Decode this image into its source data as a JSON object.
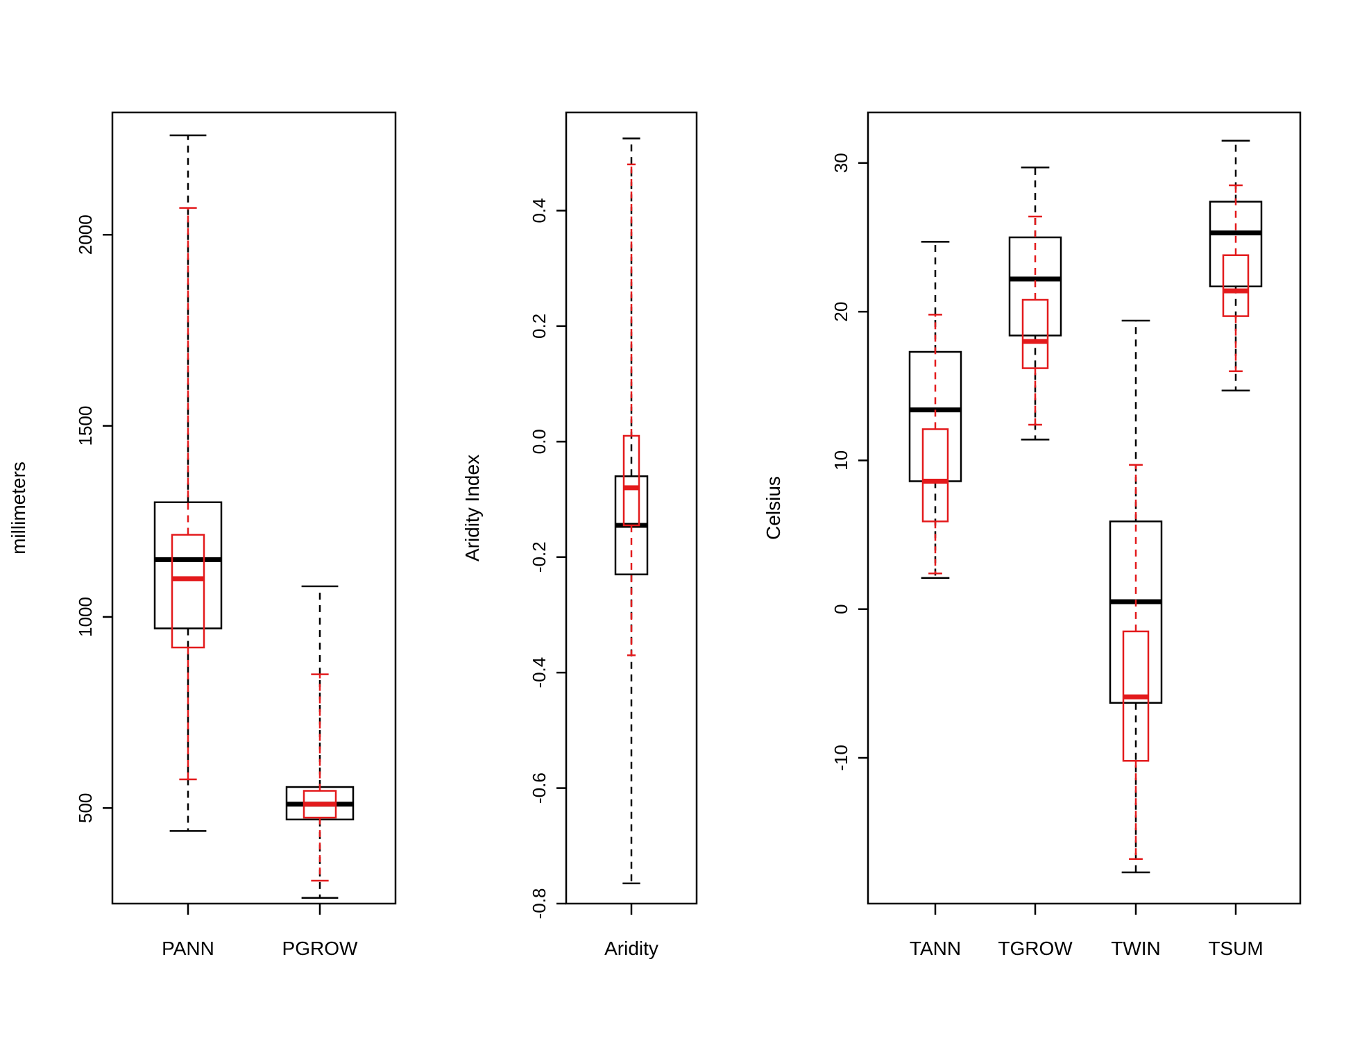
{
  "colors": {
    "black_series": "#000000",
    "red_series": "#e31a1c",
    "frame": "#000000"
  },
  "chart_data": [
    {
      "type": "boxplot",
      "ylabel": "millimeters",
      "ylim": [
        250,
        2320
      ],
      "yticks": [
        500,
        1000,
        1500,
        2000
      ],
      "yticks_text": [
        "500",
        "1000",
        "1500",
        "2000"
      ],
      "categories": [
        "PANN",
        "PGROW"
      ],
      "series": [
        {
          "name": "black",
          "boxes": [
            {
              "min": 440,
              "q1": 970,
              "median": 1150,
              "q3": 1300,
              "max": 2260
            },
            {
              "min": 265,
              "q1": 470,
              "median": 510,
              "q3": 555,
              "max": 1080
            }
          ]
        },
        {
          "name": "red",
          "boxes": [
            {
              "min": 575,
              "q1": 920,
              "median": 1100,
              "q3": 1215,
              "max": 2070
            },
            {
              "min": 310,
              "q1": 475,
              "median": 510,
              "q3": 545,
              "max": 850
            }
          ]
        }
      ]
    },
    {
      "type": "boxplot",
      "ylabel": "Aridity Index",
      "ylim": [
        -0.8,
        0.57
      ],
      "yticks": [
        -0.8,
        -0.6,
        -0.4,
        -0.2,
        0.0,
        0.2,
        0.4
      ],
      "yticks_text": [
        "-0.8",
        "-0.6",
        "-0.4",
        "-0.2",
        "0.0",
        "0.2",
        "0.4"
      ],
      "categories": [
        "Aridity"
      ],
      "series": [
        {
          "name": "black",
          "boxes": [
            {
              "min": -0.765,
              "q1": -0.23,
              "median": -0.145,
              "q3": -0.06,
              "max": 0.525
            }
          ]
        },
        {
          "name": "red",
          "boxes": [
            {
              "min": -0.37,
              "q1": -0.145,
              "median": -0.08,
              "q3": 0.01,
              "max": 0.48
            }
          ]
        }
      ]
    },
    {
      "type": "boxplot",
      "ylabel": "Celsius",
      "ylim": [
        -19.8,
        33.4
      ],
      "yticks": [
        -10,
        0,
        10,
        20,
        30
      ],
      "yticks_text": [
        "-10",
        "0",
        "10",
        "20",
        "30"
      ],
      "categories": [
        "TANN",
        "TGROW",
        "TWIN",
        "TSUM"
      ],
      "series": [
        {
          "name": "black",
          "boxes": [
            {
              "min": 2.1,
              "q1": 8.6,
              "median": 13.4,
              "q3": 17.3,
              "max": 24.7
            },
            {
              "min": 11.4,
              "q1": 18.4,
              "median": 22.2,
              "q3": 25.0,
              "max": 29.7
            },
            {
              "min": -17.7,
              "q1": -6.3,
              "median": 0.5,
              "q3": 5.9,
              "max": 19.4
            },
            {
              "min": 14.7,
              "q1": 21.7,
              "median": 25.3,
              "q3": 27.4,
              "max": 31.5
            }
          ]
        },
        {
          "name": "red",
          "boxes": [
            {
              "min": 2.4,
              "q1": 5.9,
              "median": 8.6,
              "q3": 12.1,
              "max": 19.8
            },
            {
              "min": 12.4,
              "q1": 16.2,
              "median": 18.0,
              "q3": 20.8,
              "max": 26.4
            },
            {
              "min": -16.8,
              "q1": -10.2,
              "median": -5.9,
              "q3": -1.5,
              "max": 9.7
            },
            {
              "min": 16.0,
              "q1": 19.7,
              "median": 21.4,
              "q3": 23.8,
              "max": 28.5
            }
          ]
        }
      ]
    }
  ]
}
